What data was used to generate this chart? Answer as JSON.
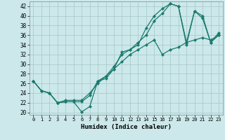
{
  "xlabel": "Humidex (Indice chaleur)",
  "bg_color": "#cce8ea",
  "grid_color": "#aacccc",
  "line_color": "#1a7a6e",
  "xlim": [
    -0.5,
    23.5
  ],
  "ylim": [
    19.5,
    43
  ],
  "yticks": [
    20,
    22,
    24,
    26,
    28,
    30,
    32,
    34,
    36,
    38,
    40,
    42
  ],
  "xticks": [
    0,
    1,
    2,
    3,
    4,
    5,
    6,
    7,
    8,
    9,
    10,
    11,
    12,
    13,
    14,
    15,
    16,
    17,
    18,
    19,
    20,
    21,
    22,
    23
  ],
  "line1_x": [
    0,
    1,
    2,
    3,
    4,
    5,
    6,
    7,
    8,
    9,
    10,
    11,
    12,
    13,
    14,
    15,
    16,
    17,
    18,
    19,
    20,
    21,
    22,
    23
  ],
  "line1_y": [
    26.5,
    24.5,
    24.0,
    22.0,
    22.2,
    22.2,
    20.1,
    21.2,
    26.5,
    27.0,
    29.0,
    32.5,
    33.0,
    34.0,
    37.5,
    40.0,
    41.5,
    42.5,
    42.0,
    34.5,
    41.0,
    39.5,
    34.5,
    36.0
  ],
  "line2_x": [
    0,
    1,
    2,
    3,
    4,
    5,
    6,
    7,
    8,
    9,
    10,
    11,
    12,
    13,
    14,
    15,
    16,
    17,
    18,
    19,
    20,
    21,
    22,
    23
  ],
  "line2_y": [
    26.5,
    24.5,
    24.0,
    22.0,
    22.2,
    22.2,
    22.2,
    23.5,
    26.5,
    27.5,
    29.5,
    32.0,
    33.0,
    34.5,
    36.0,
    39.0,
    40.5,
    42.5,
    42.0,
    34.0,
    41.0,
    40.0,
    34.5,
    36.5
  ],
  "line3_x": [
    0,
    1,
    2,
    3,
    4,
    5,
    6,
    7,
    8,
    9,
    10,
    11,
    12,
    13,
    14,
    15,
    16,
    17,
    18,
    19,
    20,
    21,
    22,
    23
  ],
  "line3_y": [
    26.5,
    24.5,
    24.0,
    22.0,
    22.5,
    22.5,
    22.5,
    24.0,
    26.0,
    27.5,
    29.0,
    30.5,
    32.0,
    33.0,
    34.0,
    35.0,
    32.0,
    33.0,
    33.5,
    34.5,
    35.0,
    35.5,
    35.0,
    36.0
  ]
}
